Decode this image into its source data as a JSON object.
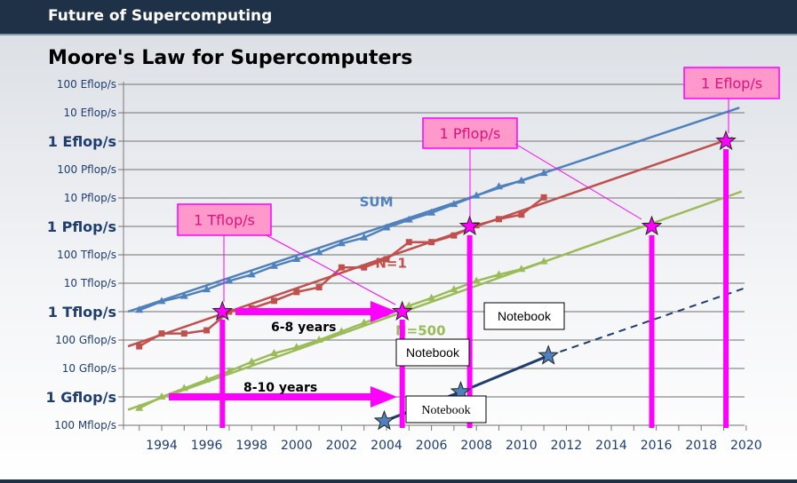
{
  "header": {
    "title": "Future of Supercomputing"
  },
  "chart_data": {
    "type": "line",
    "title": "Moore's Law for Supercomputers",
    "xlabel": "",
    "ylabel": "",
    "unit": "Gflop/s",
    "xlim": [
      1992.3,
      2020
    ],
    "x_ticks": [
      1994,
      1996,
      1998,
      2000,
      2002,
      2004,
      2006,
      2008,
      2010,
      2012,
      2014,
      2016,
      2018,
      2020
    ],
    "x_tick_labels": [
      "1994",
      "1996",
      "1998",
      "2000",
      "2002",
      "2004",
      "2006",
      "2008",
      "2010",
      "2012",
      "2014",
      "2016",
      "2018",
      "2020"
    ],
    "y_ticks": [
      {
        "label": "100 Eflop/s",
        "exp": 20,
        "bold": false
      },
      {
        "label": "10 Eflop/s",
        "exp": 19,
        "bold": false
      },
      {
        "label": "1 Eflop/s",
        "exp": 18,
        "bold": true
      },
      {
        "label": "100 Pflop/s",
        "exp": 17,
        "bold": false
      },
      {
        "label": "10 Pflop/s",
        "exp": 16,
        "bold": false
      },
      {
        "label": "1 Pflop/s",
        "exp": 15,
        "bold": true
      },
      {
        "label": "100 Tflop/s",
        "exp": 14,
        "bold": false
      },
      {
        "label": "10 Tflop/s",
        "exp": 13,
        "bold": false
      },
      {
        "label": "1 Tflop/s",
        "exp": 12,
        "bold": true
      },
      {
        "label": "100 Gflop/s",
        "exp": 11,
        "bold": false
      },
      {
        "label": "10 Gflop/s",
        "exp": 10,
        "bold": false
      },
      {
        "label": "1 Gflop/s",
        "exp": 9,
        "bold": true
      },
      {
        "label": "100 Mflop/s",
        "exp": 8,
        "bold": false
      }
    ],
    "years": [
      1993,
      1994,
      1995,
      1996,
      1997,
      1998,
      1999,
      2000,
      2001,
      2002,
      2003,
      2004,
      2005,
      2006,
      2007,
      2008,
      2009,
      2010,
      2011
    ],
    "series": [
      {
        "name": "SUM",
        "color": "#4f81bd",
        "marker": "triangle",
        "values": [
          1130,
          2300,
          3500,
          6000,
          12000,
          20000,
          40000,
          70000,
          120000,
          250000,
          400000,
          900000,
          1700000,
          3000000,
          6000000,
          12000000,
          25000000,
          40000000,
          74000000
        ],
        "trend": [
          [
            1992.5,
            1000
          ],
          [
            2019.7,
            15000000000
          ]
        ]
      },
      {
        "name": "N=1",
        "color": "#c0504d",
        "marker": "square",
        "values": [
          60,
          170,
          170,
          220,
          1000,
          1300,
          2400,
          4900,
          7200,
          36000,
          36000,
          70000,
          280000,
          280000,
          480000,
          1100000,
          1800000,
          2600000,
          10500000
        ],
        "trend": [
          [
            1992.5,
            60
          ],
          [
            2019.4,
            1300000000
          ]
        ]
      },
      {
        "name": "N=500",
        "color": "#9bbb59",
        "marker": "triangle",
        "values": [
          0.4,
          1,
          2,
          4,
          8,
          17,
          34,
          55,
          100,
          200,
          400,
          800,
          1600,
          3000,
          6000,
          12000,
          20000,
          31000,
          58000
        ],
        "trend": [
          [
            1992.5,
            0.35
          ],
          [
            2019.8,
            17000000
          ]
        ]
      },
      {
        "name": "Notebook",
        "color": "#1f3d6e",
        "values_xy": [
          [
            2003.9,
            0.14
          ],
          [
            2007.3,
            1.5
          ],
          [
            2011.2,
            28
          ]
        ],
        "projection": [
          [
            2011.2,
            28
          ],
          [
            2020,
            7000
          ]
        ]
      }
    ],
    "series_labels": [
      {
        "text": "SUM",
        "x": 2002.8,
        "y": 5000000
      },
      {
        "text": "N=1",
        "x": 2003.5,
        "y": 35000
      },
      {
        "text": "N=500",
        "x": 2004.4,
        "y": 150
      }
    ],
    "milestones": [
      {
        "x": 1996.7,
        "y": 1000
      },
      {
        "x": 2004.7,
        "y": 1000
      },
      {
        "x": 2007.7,
        "y": 1000000
      },
      {
        "x": 2015.8,
        "y": 1000000
      },
      {
        "x": 2019.1,
        "y": 1000000000
      }
    ],
    "notebook_stars": [
      {
        "x": 2003.9,
        "y": 0.14
      },
      {
        "x": 2007.3,
        "y": 1.5
      },
      {
        "x": 2011.2,
        "y": 28
      }
    ],
    "annotations": {
      "tflop": "1 Tflop/s",
      "pflop": "1 Pflop/s",
      "eflop": "1 Eflop/s",
      "gap1": "6-8 years",
      "gap2": "8-10 years",
      "nb1": "Notebook",
      "nb2": "Notebook",
      "nb3": "Notebook"
    }
  }
}
